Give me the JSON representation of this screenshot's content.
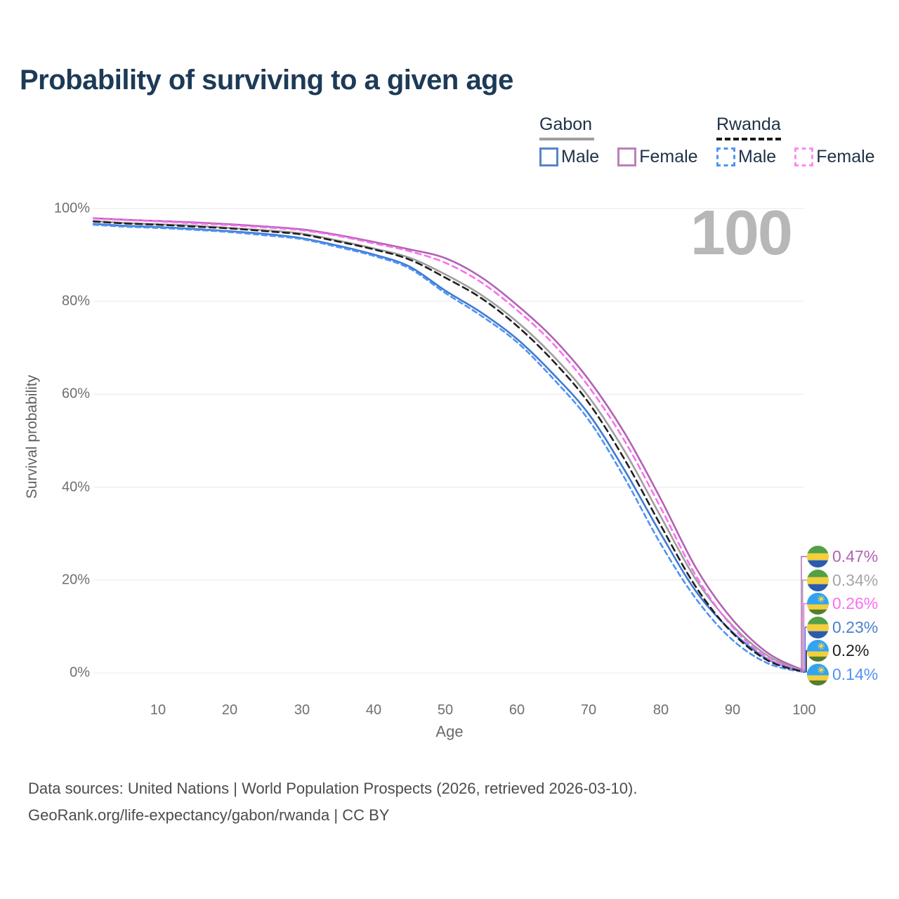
{
  "title": "Probability of surviving to a given age",
  "watermark": "100",
  "legend": {
    "groups": [
      {
        "name": "Gabon",
        "line_style": "solid",
        "rule_color": "#9e9e9e",
        "items": [
          {
            "label": "Male",
            "color": "#5585c7"
          },
          {
            "label": "Female",
            "color": "#bc7fba"
          }
        ]
      },
      {
        "name": "Rwanda",
        "line_style": "dashed",
        "rule_color": "#1b1b1b",
        "items": [
          {
            "label": "Male",
            "color": "#4f93f7"
          },
          {
            "label": "Female",
            "color": "#fa8cf0"
          }
        ]
      }
    ]
  },
  "axes": {
    "x": {
      "label": "Age",
      "ticks": [
        "10",
        "20",
        "30",
        "40",
        "50",
        "60",
        "70",
        "80",
        "90",
        "100"
      ]
    },
    "y": {
      "label": "Survival probability",
      "ticks": [
        "0%",
        "20%",
        "40%",
        "60%",
        "80%",
        "100%"
      ]
    }
  },
  "chart_data": {
    "type": "line",
    "title": "Probability of surviving to a given age",
    "xlabel": "Age",
    "ylabel": "Survival probability",
    "xlim": [
      1,
      100
    ],
    "ylim": [
      0,
      100
    ],
    "grid": "horizontal-only",
    "legend_position": "top-right",
    "y_gridlines_pct": [
      0,
      20,
      40,
      60,
      80,
      100
    ],
    "x": [
      1,
      5,
      10,
      15,
      20,
      25,
      30,
      35,
      40,
      45,
      50,
      55,
      60,
      65,
      70,
      75,
      80,
      85,
      90,
      95,
      100
    ],
    "series": [
      {
        "id": "gabon-male",
        "name": "Gabon Male",
        "country": "Gabon",
        "sex": "Male",
        "color": "#3f7ad1",
        "dash": null,
        "values": [
          96.7,
          96.3,
          96.0,
          95.6,
          95.1,
          94.5,
          93.6,
          92.0,
          90.1,
          87.5,
          82.3,
          77.6,
          71.9,
          64.4,
          55.7,
          43.6,
          30.0,
          17.4,
          8.8,
          2.9,
          0.23
        ],
        "end_label": "0.23%"
      },
      {
        "id": "gabon-female",
        "name": "Gabon Female",
        "country": "Gabon",
        "sex": "Female",
        "color": "#b163b1",
        "dash": null,
        "values": [
          97.9,
          97.6,
          97.3,
          97.0,
          96.6,
          96.1,
          95.5,
          94.3,
          92.8,
          91.2,
          89.3,
          85.2,
          79.2,
          72.1,
          63.1,
          51.6,
          37.5,
          22.4,
          11.5,
          4.2,
          0.47
        ],
        "end_label": "0.47%"
      },
      {
        "id": "gabon-both",
        "name": "Gabon Both sexes",
        "country": "Gabon",
        "sex": "Both",
        "color": "#9e9e9e",
        "dash": null,
        "values": [
          97.3,
          96.9,
          96.6,
          96.3,
          95.8,
          95.3,
          94.6,
          93.1,
          91.4,
          89.4,
          85.8,
          81.4,
          75.6,
          68.3,
          59.4,
          47.7,
          33.7,
          19.9,
          10.2,
          3.6,
          0.34
        ],
        "end_label": "0.34%"
      },
      {
        "id": "rwanda-male",
        "name": "Rwanda Male",
        "country": "Rwanda",
        "sex": "Male",
        "color": "#4f93f7",
        "dash": "7 5",
        "values": [
          96.5,
          96.1,
          95.8,
          95.4,
          94.9,
          94.2,
          93.4,
          91.7,
          89.8,
          87.1,
          81.8,
          76.9,
          71.2,
          63.4,
          54.4,
          41.9,
          27.8,
          15.8,
          7.1,
          2.0,
          0.14
        ],
        "end_label": "0.14%"
      },
      {
        "id": "rwanda-female",
        "name": "Rwanda Female",
        "country": "Rwanda",
        "sex": "Female",
        "color": "#fa6ef2",
        "dash": "8 6",
        "values": [
          97.8,
          97.5,
          97.2,
          96.8,
          96.4,
          95.9,
          95.3,
          94.1,
          92.5,
          90.8,
          88.3,
          84.1,
          78.1,
          70.9,
          61.6,
          49.9,
          35.6,
          20.7,
          9.9,
          3.1,
          0.26
        ],
        "end_label": "0.26%"
      },
      {
        "id": "rwanda-both",
        "name": "Rwanda Both sexes",
        "country": "Rwanda",
        "sex": "Both",
        "color": "#1f1f1f",
        "dash": "9 6",
        "values": [
          97.2,
          96.8,
          96.5,
          96.1,
          95.7,
          95.1,
          94.4,
          92.9,
          91.2,
          89.0,
          85.1,
          80.7,
          74.7,
          67.2,
          58.1,
          45.9,
          31.8,
          18.3,
          8.6,
          2.6,
          0.2
        ],
        "end_label": "0.2%"
      }
    ]
  },
  "end_labels": [
    {
      "series": "gabon-female",
      "flag": "gabon",
      "value": "0.47%",
      "color": "#b163b1"
    },
    {
      "series": "gabon-both",
      "flag": "gabon",
      "value": "0.34%",
      "color": "#a6a6a6"
    },
    {
      "series": "rwanda-female",
      "flag": "rwanda",
      "value": "0.26%",
      "color": "#fa6ef2"
    },
    {
      "series": "gabon-male",
      "flag": "gabon",
      "value": "0.23%",
      "color": "#4a80d0"
    },
    {
      "series": "rwanda-both",
      "flag": "rwanda",
      "value": "0.2%",
      "color": "#1f1f1f"
    },
    {
      "series": "rwanda-male",
      "flag": "rwanda",
      "value": "0.14%",
      "color": "#4f93f7"
    }
  ],
  "flags": {
    "gabon": {
      "green": "#53a045",
      "yellow": "#f3cf3c",
      "blue": "#2a5db0"
    },
    "rwanda": {
      "blue": "#33a3f0",
      "yellow": "#f3cf3c",
      "green": "#557d2a",
      "sun": "#f8d848"
    }
  },
  "footer": {
    "line1": "Data sources: United Nations | World Population Prospects (2026, retrieved 2026-03-10).",
    "line2": "GeoRank.org/life-expectancy/gabon/rwanda | CC BY"
  }
}
